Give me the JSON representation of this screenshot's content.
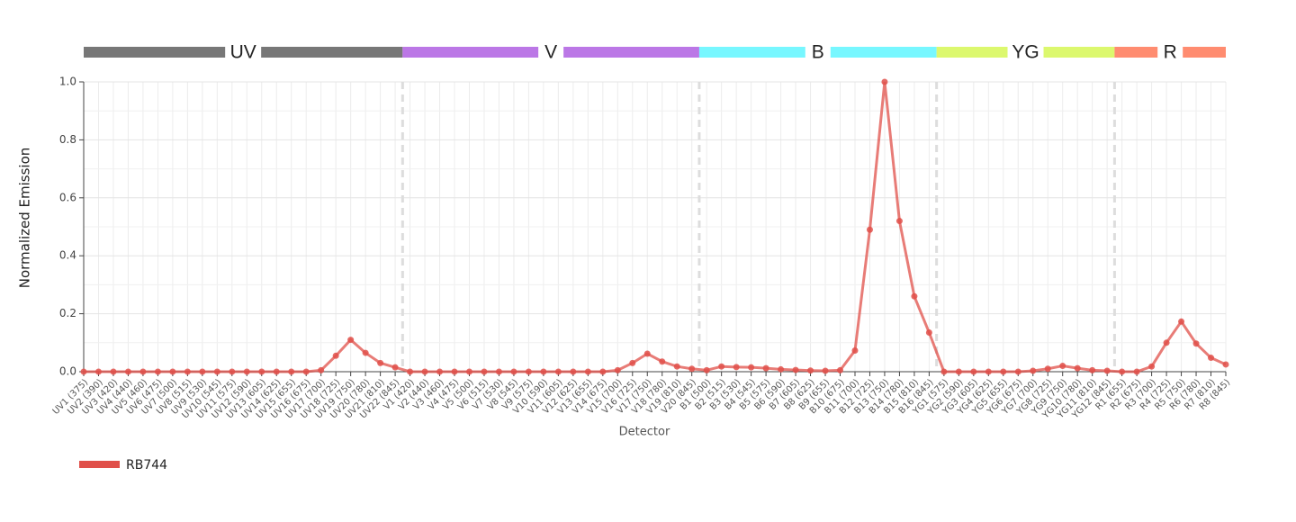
{
  "chart_data": {
    "type": "line",
    "y_label": "Normalized Emission",
    "x_label": "Detector",
    "bands": [
      {
        "label": "UV",
        "color": "#777777"
      },
      {
        "label": "V",
        "color": "#bb77e6"
      },
      {
        "label": "B",
        "color": "#77f7ff"
      },
      {
        "label": "YG",
        "color": "#dcf86e"
      },
      {
        "label": "R",
        "color": "#ff8c70"
      }
    ],
    "categories": [
      "UV1 (375)",
      "UV2 (390)",
      "UV3 (420)",
      "UV4 (440)",
      "UV5 (460)",
      "UV6 (475)",
      "UV7 (500)",
      "UV8 (515)",
      "UV9 (530)",
      "UV10 (545)",
      "UV11 (575)",
      "UV12 (590)",
      "UV13 (605)",
      "UV14 (625)",
      "UV15 (655)",
      "UV16 (675)",
      "UV17 (700)",
      "UV18 (725)",
      "UV19 (750)",
      "UV20 (780)",
      "UV21 (810)",
      "UV22 (845)",
      "V1 (420)",
      "V2 (440)",
      "V3 (460)",
      "V4 (475)",
      "V5 (500)",
      "V6 (515)",
      "V7 (530)",
      "V8 (545)",
      "V9 (575)",
      "V10 (590)",
      "V11 (605)",
      "V12 (625)",
      "V13 (655)",
      "V14 (675)",
      "V15 (700)",
      "V16 (725)",
      "V17 (750)",
      "V18 (780)",
      "V19 (810)",
      "V20 (845)",
      "B1 (500)",
      "B2 (515)",
      "B3 (530)",
      "B4 (545)",
      "B5 (575)",
      "B6 (590)",
      "B7 (605)",
      "B8 (625)",
      "B9 (655)",
      "B10 (675)",
      "B11 (700)",
      "B12 (725)",
      "B13 (750)",
      "B14 (780)",
      "B15 (810)",
      "B16 (845)",
      "YG1 (575)",
      "YG2 (590)",
      "YG3 (605)",
      "YG4 (625)",
      "YG5 (655)",
      "YG6 (675)",
      "YG7 (700)",
      "YG8 (725)",
      "YG9 (750)",
      "YG10 (780)",
      "YG11 (810)",
      "YG12 (845)",
      "R1 (655)",
      "R2 (675)",
      "R3 (700)",
      "R4 (725)",
      "R5 (750)",
      "R6 (780)",
      "R7 (810)",
      "R8 (845)"
    ],
    "series": [
      {
        "name": "RB744",
        "color": "#e0504a",
        "values": [
          0,
          0,
          0,
          0,
          0,
          0,
          0,
          0,
          0,
          0,
          0,
          0,
          0,
          0,
          0,
          0,
          0.005,
          0.055,
          0.11,
          0.065,
          0.03,
          0.015,
          0,
          0,
          0,
          0,
          0,
          0,
          0,
          0,
          0,
          0,
          0,
          0,
          0,
          0,
          0.005,
          0.03,
          0.062,
          0.035,
          0.018,
          0.01,
          0.005,
          0.018,
          0.016,
          0.015,
          0.012,
          0.008,
          0.006,
          0.004,
          0.003,
          0.005,
          0.073,
          0.49,
          1.0,
          0.52,
          0.26,
          0.135,
          0,
          0,
          0,
          0,
          0,
          0,
          0.003,
          0.01,
          0.02,
          0.012,
          0.005,
          0.003,
          0,
          0,
          0.018,
          0.1,
          0.173,
          0.097,
          0.048,
          0.025
        ]
      }
    ],
    "ylim": [
      0,
      1
    ],
    "yticks": [
      {
        "value": 0,
        "label": "0.0"
      },
      0.2,
      0.4,
      0.6,
      0.8,
      {
        "value": 1,
        "label": "1.0"
      }
    ],
    "grid": true
  }
}
